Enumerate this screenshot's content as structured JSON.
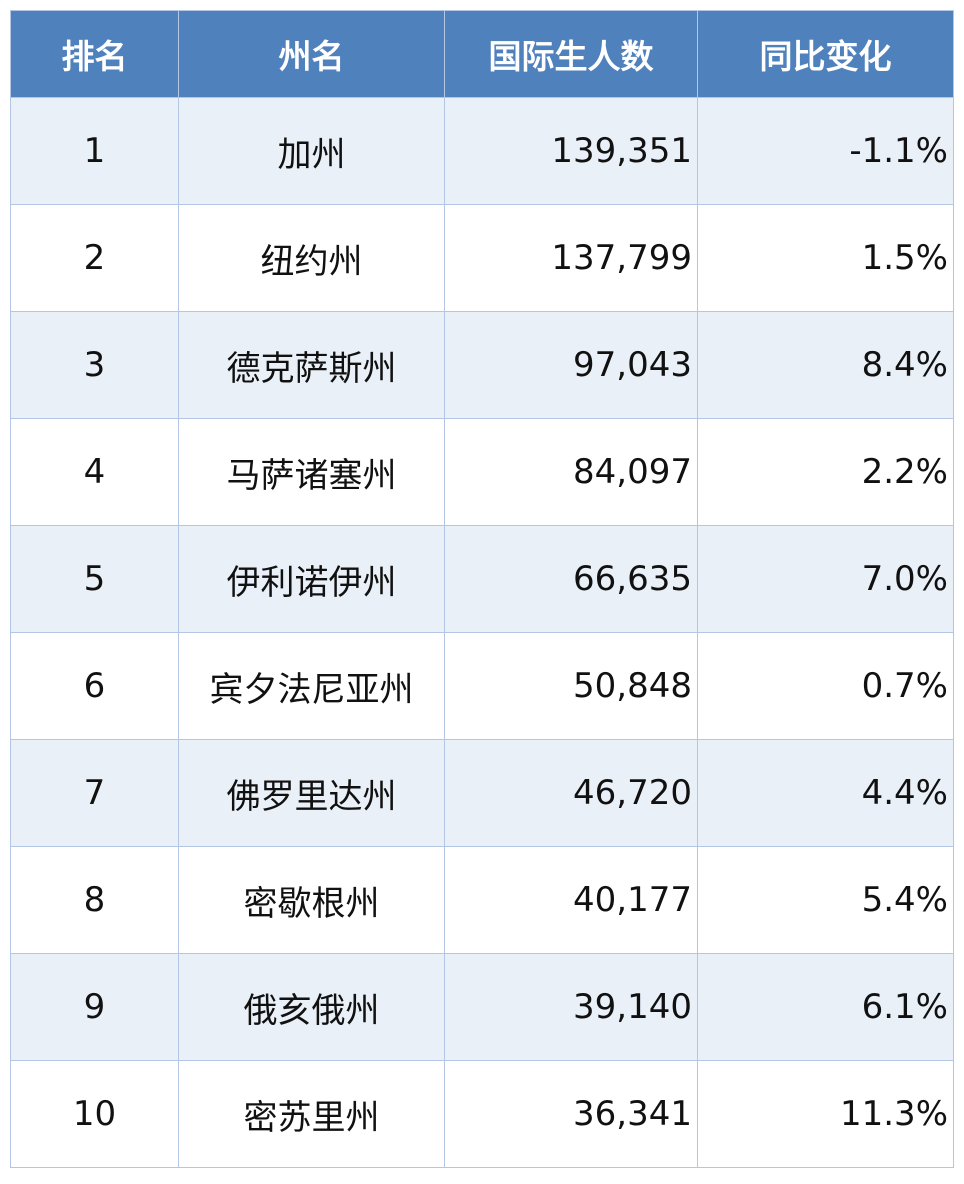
{
  "table": {
    "headers": [
      "排名",
      "州名",
      "国际生人数",
      "同比变化"
    ],
    "rows": [
      {
        "rank": "1",
        "state": "加州",
        "students": "139,351",
        "change": "-1.1%"
      },
      {
        "rank": "2",
        "state": "纽约州",
        "students": "137,799",
        "change": "1.5%"
      },
      {
        "rank": "3",
        "state": "德克萨斯州",
        "students": "97,043",
        "change": "8.4%"
      },
      {
        "rank": "4",
        "state": "马萨诸塞州",
        "students": "84,097",
        "change": "2.2%"
      },
      {
        "rank": "5",
        "state": "伊利诺伊州",
        "students": "66,635",
        "change": "7.0%"
      },
      {
        "rank": "6",
        "state": "宾夕法尼亚州",
        "students": "50,848",
        "change": "0.7%"
      },
      {
        "rank": "7",
        "state": "佛罗里达州",
        "students": "46,720",
        "change": "4.4%"
      },
      {
        "rank": "8",
        "state": "密歇根州",
        "students": "40,177",
        "change": "5.4%"
      },
      {
        "rank": "9",
        "state": "俄亥俄州",
        "students": "39,140",
        "change": "6.1%"
      },
      {
        "rank": "10",
        "state": "密苏里州",
        "students": "36,341",
        "change": "11.3%"
      }
    ]
  },
  "colors": {
    "header_bg": "#4f81bd",
    "header_text": "#ffffff",
    "row_alt_bg": "#eaf0f8",
    "row_bg": "#ffffff",
    "border": "#b3c6e3"
  }
}
